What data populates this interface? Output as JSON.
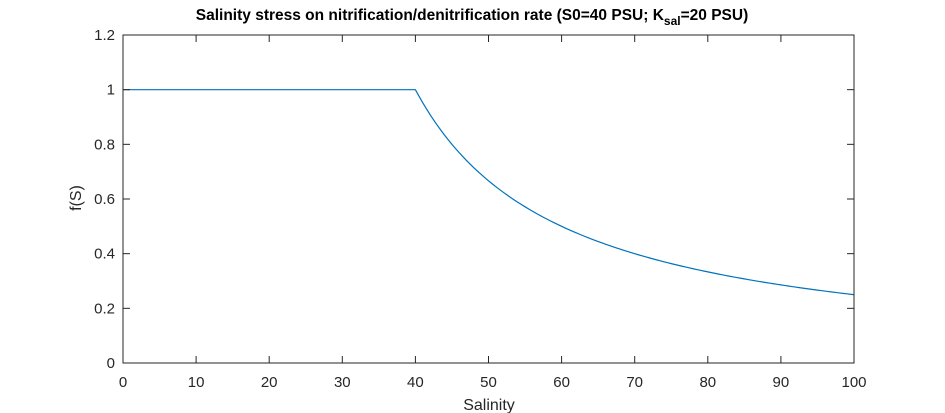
{
  "chart_data": {
    "type": "line",
    "title": {
      "prefix": "Salinity stress on nitrification/denitrification rate (S0=40 PSU; K",
      "subscript": "sal",
      "suffix": "=20 PSU)"
    },
    "xlabel": "Salinity",
    "ylabel": "f(S)",
    "xlim": [
      0,
      100
    ],
    "ylim": [
      0,
      1.2
    ],
    "xticks": [
      0,
      10,
      20,
      30,
      40,
      50,
      60,
      70,
      80,
      90,
      100
    ],
    "xtick_labels": [
      "0",
      "10",
      "20",
      "30",
      "40",
      "50",
      "60",
      "70",
      "80",
      "90",
      "100"
    ],
    "yticks": [
      0,
      0.2,
      0.4,
      0.6,
      0.8,
      1,
      1.2
    ],
    "ytick_labels": [
      "0",
      "0.2",
      "0.4",
      "0.6",
      "0.8",
      "1",
      "1.2"
    ],
    "grid": false,
    "box": true,
    "series": [
      {
        "color": "#0072bd",
        "x": [
          0,
          40,
          42,
          44,
          46,
          48,
          50,
          52,
          55,
          58,
          60,
          65,
          70,
          75,
          80,
          85,
          90,
          95,
          100
        ],
        "y": [
          1,
          1,
          0.909,
          0.833,
          0.769,
          0.714,
          0.667,
          0.625,
          0.571,
          0.526,
          0.5,
          0.444,
          0.4,
          0.364,
          0.333,
          0.308,
          0.286,
          0.267,
          0.25
        ]
      }
    ]
  }
}
